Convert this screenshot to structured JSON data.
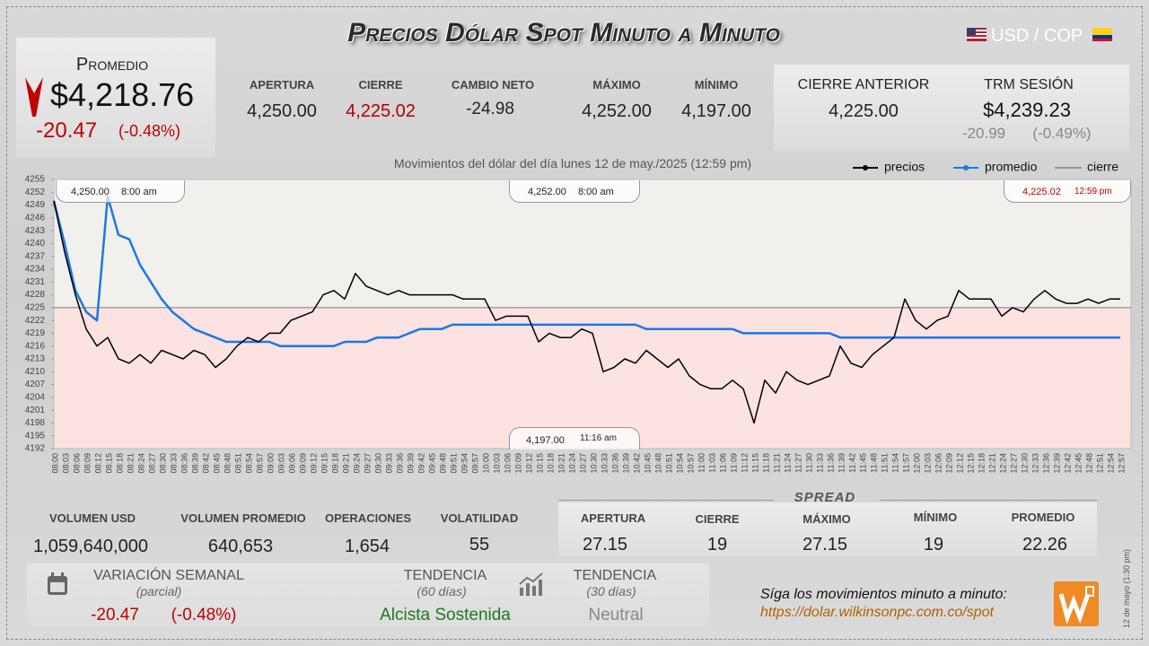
{
  "header": {
    "title": "Precios Dólar Spot Minuto a Minuto",
    "pair": "USD / COP"
  },
  "summary": {
    "label": "Promedio",
    "value": "$4,218.76",
    "change": "-20.47",
    "change_pct": "(-0.48%)"
  },
  "stats": [
    {
      "label": "APERTURA",
      "value": "4,250.00"
    },
    {
      "label": "CIERRE",
      "value": "4,225.02"
    },
    {
      "label": "CAMBIO NETO",
      "value": "-24.98"
    },
    {
      "label": "MÁXIMO",
      "value": "4,252.00"
    },
    {
      "label": "MÍNIMO",
      "value": "4,197.00"
    }
  ],
  "previous": {
    "label": "CIERRE ANTERIOR",
    "value": "4,225.00",
    "trm_label": "TRM SESIÓN",
    "trm_value": "$4,239.23",
    "trm_change": "-20.99",
    "trm_change_pct": "(-0.49%)"
  },
  "chart_data": {
    "type": "line",
    "title": "Movimientos del dólar del día lunes 12 de may./2025 (12:59 pm)",
    "categories": [
      "08:00",
      "08:03",
      "08:06",
      "08:09",
      "08:12",
      "08:15",
      "08:18",
      "08:21",
      "08:24",
      "08:27",
      "08:30",
      "08:33",
      "08:36",
      "08:39",
      "08:42",
      "08:45",
      "08:48",
      "08:51",
      "08:54",
      "08:57",
      "09:00",
      "09:03",
      "09:06",
      "09:09",
      "09:12",
      "09:15",
      "09:18",
      "09:21",
      "09:24",
      "09:27",
      "09:30",
      "09:33",
      "09:36",
      "09:39",
      "09:42",
      "09:45",
      "09:48",
      "09:51",
      "09:54",
      "09:57",
      "10:00",
      "10:03",
      "10:06",
      "10:09",
      "10:12",
      "10:15",
      "10:18",
      "10:21",
      "10:24",
      "10:27",
      "10:30",
      "10:33",
      "10:36",
      "10:39",
      "10:42",
      "10:45",
      "10:48",
      "10:51",
      "10:54",
      "10:57",
      "11:00",
      "11:03",
      "11:06",
      "11:09",
      "11:12",
      "11:15",
      "11:18",
      "11:21",
      "11:24",
      "11:27",
      "11:30",
      "11:33",
      "11:36",
      "11:39",
      "11:42",
      "11:45",
      "11:48",
      "11:51",
      "11:54",
      "11:57",
      "12:00",
      "12:03",
      "12:06",
      "12:09",
      "12:12",
      "12:15",
      "12:18",
      "12:21",
      "12:24",
      "12:27",
      "12:30",
      "12:33",
      "12:36",
      "12:39",
      "12:42",
      "12:45",
      "12:48",
      "12:51",
      "12:54",
      "12:57"
    ],
    "series": [
      {
        "name": "precios",
        "color": "#000000",
        "values": [
          4250,
          4238,
          4228,
          4220,
          4216,
          4218,
          4213,
          4212,
          4214,
          4212,
          4215,
          4214,
          4213,
          4215,
          4214,
          4211,
          4213,
          4216,
          4218,
          4217,
          4219,
          4219,
          4222,
          4223,
          4224,
          4228,
          4229,
          4227,
          4233,
          4230,
          4229,
          4228,
          4229,
          4228,
          4228,
          4228,
          4228,
          4228,
          4227,
          4227,
          4227,
          4222,
          4223,
          4223,
          4223,
          4217,
          4219,
          4218,
          4218,
          4220,
          4219,
          4210,
          4211,
          4213,
          4212,
          4215,
          4213,
          4211,
          4213,
          4209,
          4207,
          4206,
          4206,
          4208,
          4206,
          4198,
          4208,
          4205,
          4210,
          4208,
          4207,
          4208,
          4209,
          4216,
          4212,
          4211,
          4214,
          4216,
          4218,
          4227,
          4222,
          4220,
          4222,
          4223,
          4229,
          4227,
          4227,
          4227,
          4223,
          4225,
          4224,
          4227,
          4229,
          4227,
          4226,
          4226,
          4227,
          4226,
          4227,
          4227
        ]
      },
      {
        "name": "promedio",
        "color": "#1a78e6",
        "values": [
          4250,
          4240,
          4229,
          4224,
          4222,
          4251,
          4242,
          4241,
          4235,
          4231,
          4227,
          4224,
          4222,
          4220,
          4219,
          4218,
          4217,
          4217,
          4217,
          4217,
          4217,
          4216,
          4216,
          4216,
          4216,
          4216,
          4216,
          4217,
          4217,
          4217,
          4218,
          4218,
          4218,
          4219,
          4220,
          4220,
          4220,
          4221,
          4221,
          4221,
          4221,
          4221,
          4221,
          4221,
          4221,
          4221,
          4221,
          4221,
          4221,
          4221,
          4221,
          4221,
          4221,
          4221,
          4221,
          4220,
          4220,
          4220,
          4220,
          4220,
          4220,
          4220,
          4220,
          4220,
          4219,
          4219,
          4219,
          4219,
          4219,
          4219,
          4219,
          4219,
          4219,
          4218,
          4218,
          4218,
          4218,
          4218,
          4218,
          4218,
          4218,
          4218,
          4218,
          4218,
          4218,
          4218,
          4218,
          4218,
          4218,
          4218,
          4218,
          4218,
          4218,
          4218,
          4218,
          4218,
          4218,
          4218,
          4218,
          4218
        ]
      }
    ],
    "reference_line": {
      "name": "cierre",
      "value": 4225,
      "color": "#555555"
    },
    "ylim": [
      4192,
      4255
    ],
    "yticks": [
      4192,
      4195,
      4198,
      4201,
      4204,
      4207,
      4210,
      4213,
      4216,
      4219,
      4222,
      4225,
      4228,
      4231,
      4234,
      4237,
      4240,
      4243,
      4246,
      4249,
      4252,
      4255
    ],
    "grid": false,
    "annotations": [
      {
        "value": "4,250.00",
        "time": "8:00 am"
      },
      {
        "value": "4,252.00",
        "time": "8:00 am"
      },
      {
        "value": "4,225.02",
        "time": "12:59 pm"
      },
      {
        "value": "4,197.00",
        "time": "11:16 am"
      }
    ]
  },
  "volume": [
    {
      "label": "VOLUMEN USD",
      "value": "1,059,640,000"
    },
    {
      "label": "VOLUMEN PROMEDIO",
      "value": "640,653"
    },
    {
      "label": "OPERACIONES",
      "value": "1,654"
    },
    {
      "label": "VOLATILIDAD",
      "value": "55"
    }
  ],
  "spread": {
    "title": "SPREAD",
    "items": [
      {
        "label": "APERTURA",
        "value": "27.15"
      },
      {
        "label": "CIERRE",
        "value": "19"
      },
      {
        "label": "MÁXIMO",
        "value": "27.15"
      },
      {
        "label": "MÍNIMO",
        "value": "19"
      },
      {
        "label": "PROMEDIO",
        "value": "22.26"
      }
    ]
  },
  "weekly": {
    "label": "VARIACIÓN SEMANAL",
    "note": "(parcial)",
    "change": "-20.47",
    "change_pct": "(-0.48%)"
  },
  "trend60": {
    "label": "TENDENCIA",
    "note": "(60 días)",
    "value": "Alcista Sostenida"
  },
  "trend30": {
    "label": "TENDENCIA",
    "note": "(30 días)",
    "value": "Neutral"
  },
  "footer": {
    "text": "Síga los movimientos minuto a minuto:",
    "url": "https://dolar.wilkinsonpc.com.co/spot",
    "stamp": "12 de mayo (1:30 pm)"
  }
}
